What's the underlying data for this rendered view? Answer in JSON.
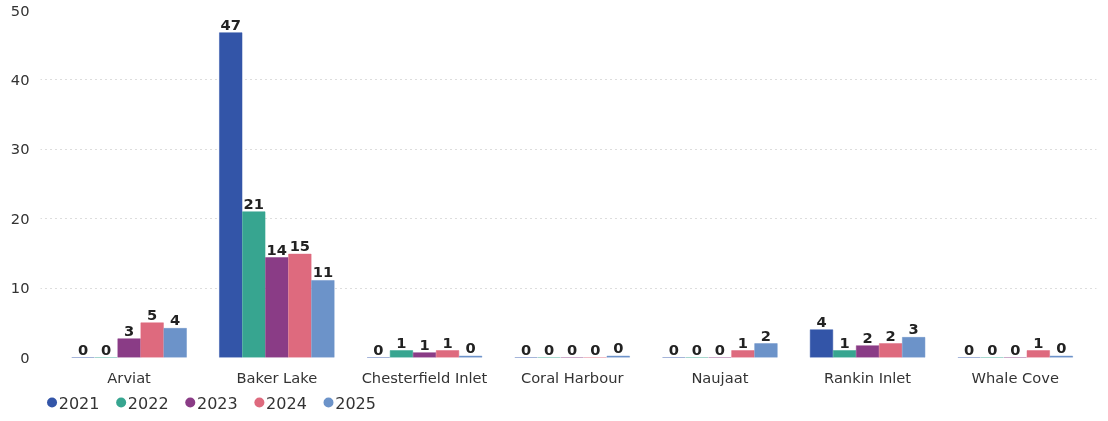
{
  "chart_data": {
    "type": "bar",
    "categories": [
      "Arviat",
      "Baker Lake",
      "Chesterfield Inlet",
      "Coral Harbour",
      "Naujaat",
      "Rankin Inlet",
      "Whale Cove"
    ],
    "series": [
      {
        "name": "2021",
        "color": "#3355a8",
        "values": [
          0,
          46.8,
          0,
          0,
          0,
          4.0,
          0
        ],
        "value_labels": [
          "0",
          "47",
          "0",
          "0",
          "0",
          "4",
          "0"
        ]
      },
      {
        "name": "2022",
        "color": "#37a590",
        "values": [
          0,
          21.0,
          1.0,
          0,
          0,
          1.0,
          0
        ],
        "value_labels": [
          "0",
          "21",
          "1",
          "0",
          "0",
          "1",
          "0"
        ]
      },
      {
        "name": "2023",
        "color": "#8a3c86",
        "values": [
          2.7,
          14.4,
          0.7,
          0,
          0,
          1.7,
          0
        ],
        "value_labels": [
          "3",
          "14",
          "1",
          "0",
          "0",
          "2",
          "0"
        ]
      },
      {
        "name": "2024",
        "color": "#de6a7e",
        "values": [
          5.0,
          14.9,
          1.0,
          0,
          1.0,
          2.0,
          1.0
        ],
        "value_labels": [
          "5",
          "15",
          "1",
          "0",
          "1",
          "2",
          "1"
        ]
      },
      {
        "name": "2025",
        "color": "#6c93c9",
        "values": [
          4.2,
          11.1,
          0.2,
          0.2,
          2.0,
          2.9,
          0.2
        ],
        "value_labels": [
          "4",
          "11",
          "0",
          "0",
          "2",
          "3",
          "0"
        ]
      }
    ],
    "ylim": [
      0,
      50
    ],
    "yticks": [
      0,
      10,
      20,
      30,
      40,
      50
    ],
    "grid": "y",
    "legend": "bottom left"
  }
}
